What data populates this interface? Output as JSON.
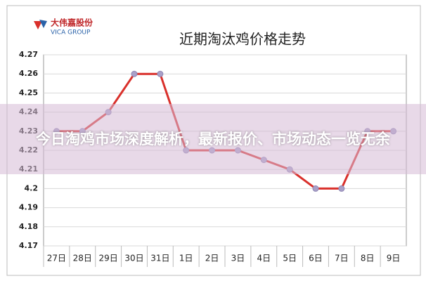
{
  "logo": {
    "name": "大伟嘉股份",
    "en": "VICA GROUP"
  },
  "overlay": {
    "text": "今日淘鸡市场深度解析，最新报价、市场动态一览无余"
  },
  "chart_data": {
    "type": "line",
    "title": "近期淘汰鸡价格走势",
    "categories": [
      "27日",
      "28日",
      "29日",
      "30日",
      "31日",
      "1日",
      "2日",
      "3日",
      "4日",
      "5日",
      "6日",
      "7日",
      "8日",
      "9日"
    ],
    "series": [
      {
        "color": "#d9302b",
        "values": [
          4.23,
          4.23,
          4.24,
          4.26,
          4.26,
          4.22,
          4.22,
          4.22,
          4.215,
          4.21,
          4.2,
          4.2,
          4.23,
          4.23
        ]
      }
    ],
    "ylim": [
      4.17,
      4.27
    ],
    "yticks": [
      4.17,
      4.18,
      4.19,
      4.2,
      4.21,
      4.22,
      4.23,
      4.24,
      4.25,
      4.26,
      4.27
    ],
    "grid": true
  }
}
